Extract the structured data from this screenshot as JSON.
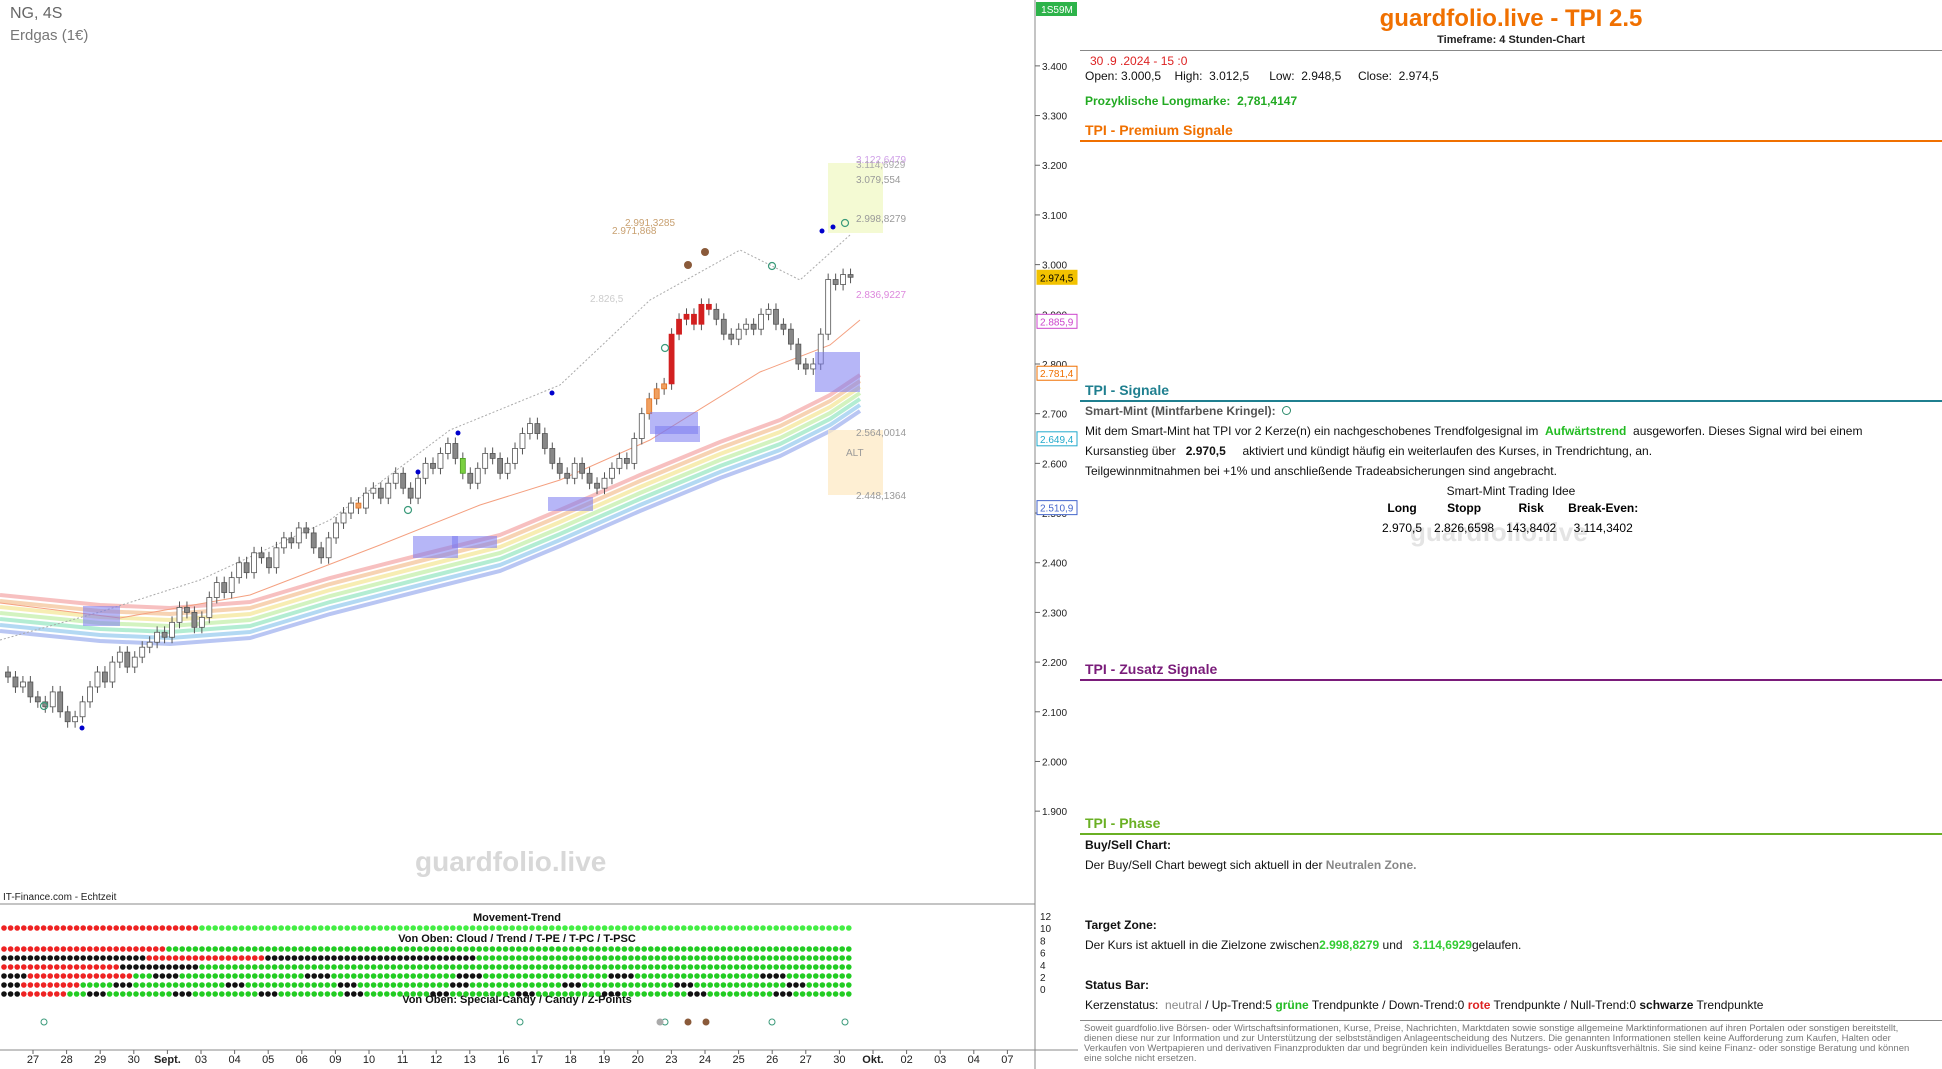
{
  "chart_header": {
    "symbol": "NG, 4S",
    "name": "Erdgas (1€)",
    "time_remaining": "1S59M",
    "source": "IT-Finance.com - Echtzeit",
    "watermark": "guardfolio.live"
  },
  "colors": {
    "up": "#ffffff",
    "down": "#d22020",
    "accent": "#f07000",
    "teal": "#1f7f8f",
    "purple": "#7a1c7a",
    "green": "#6ab024"
  },
  "chart_data": {
    "type": "candlestick",
    "ylim": [
      1.85,
      3.44
    ],
    "y_ticks": [
      "3.400",
      "3.300",
      "3.200",
      "3.100",
      "3.000",
      "2.900",
      "2.800",
      "2.700",
      "2.600",
      "2.500",
      "2.400",
      "2.300",
      "2.200",
      "2.100",
      "2.000",
      "1.900"
    ],
    "x_ticks": [
      "27",
      "28",
      "29",
      "30",
      "Sept.",
      "03",
      "04",
      "05",
      "06",
      "09",
      "10",
      "11",
      "12",
      "13",
      "16",
      "17",
      "18",
      "19",
      "20",
      "23",
      "24",
      "25",
      "26",
      "27",
      "30",
      "Okt.",
      "02",
      "03",
      "04",
      "07"
    ],
    "price_flags": [
      {
        "label": "2.974,5",
        "value": 2.9745,
        "color": "#f2c200"
      },
      {
        "label": "2.885,9",
        "value": 2.8859,
        "color": "#cc44cc"
      },
      {
        "label": "2.781,4",
        "value": 2.7814,
        "color": "#f07000"
      },
      {
        "label": "2.649,4",
        "value": 2.6494,
        "color": "#22aacc"
      },
      {
        "label": "2.510,9",
        "value": 2.5109,
        "color": "#4466cc"
      }
    ],
    "annotations": [
      {
        "text": "3.122,6479",
        "value": 3.1226,
        "color": "#d0a0e8"
      },
      {
        "text": "3.114,6929",
        "value": 3.1147,
        "color": "#aaaaaa"
      },
      {
        "text": "3.079,554",
        "value": 3.0796,
        "color": "#999999"
      },
      {
        "text": "2.998,8279",
        "value": 2.9988,
        "color": "#999999"
      },
      {
        "text": "2.991,3285",
        "value": 2.9913,
        "color": "#c8a070"
      },
      {
        "text": "2.971,868",
        "value": 2.9719,
        "color": "#c8a070"
      },
      {
        "text": "2.836,9227",
        "value": 2.8369,
        "color": "#dd88dd"
      },
      {
        "text": "2.826,5",
        "value": 2.8265,
        "color": "#cccccc"
      },
      {
        "text": "2.564,0014",
        "value": 2.564,
        "color": "#999999"
      },
      {
        "text": "2.448,1364",
        "value": 2.4481,
        "color": "#999999"
      },
      {
        "text": "ALT",
        "value": 2.52,
        "color": "#999999"
      }
    ],
    "indicator": {
      "title": "Movement-Trend",
      "sub1": "Von Oben: Cloud / Trend / T-PE / T-PC / T-PSC",
      "sub2": "Von Oben: Special-Candy / Candy / Z-Points",
      "scale": [
        "12",
        "10",
        "8",
        "6",
        "4",
        "2",
        "0"
      ]
    }
  },
  "panel": {
    "title": "guardfolio.live - TPI 2.5",
    "timeframe": "Timeframe: 4 Stunden-Chart",
    "datetime": "30 .9 .2024  - 15 :0",
    "ohlc": {
      "open_l": "Open:",
      "open": "3.000,5",
      "high_l": "High:",
      "high": "3.012,5",
      "low_l": "Low:",
      "low": "2.948,5",
      "close_l": "Close:",
      "close": "2.974,5"
    },
    "longmarke_label": "Prozyklische Longmarke:",
    "longmarke": "2,781,4147",
    "sec_premium": "TPI - Premium Signale",
    "sec_signale": "TPI - Signale",
    "smartmint_head": "Smart-Mint (Mintfarbene Kringel):",
    "sm_line1a": "Mit dem Smart-Mint hat TPI vor 2  Kerze(n) ein nachgeschobenes Trendfolgesignal im",
    "sm_line1b": "Aufwärtstrend",
    "sm_line1c": "ausgeworfen. Dieses Signal wird bei einem",
    "sm_line2a": "Kursanstieg über",
    "sm_line2b": "2.970,5",
    "sm_line2c": "aktiviert und kündigt häufig ein weiterlaufen des Kurses, in Trendrichtung, an.",
    "sm_line3": "Teilgewinnmitnahmen bei +1% und anschließende Tradeabsicherungen sind angebracht.",
    "idea_title": "Smart-Mint Trading Idee",
    "idea_h": [
      "Long",
      "Stopp",
      "Risk",
      "Break-Even:"
    ],
    "idea_v": [
      "2.970,5",
      "2.826,6598",
      "143,8402",
      "3.114,3402"
    ],
    "sec_zusatz": "TPI - Zusatz Signale",
    "sec_phase": "TPI - Phase",
    "bs_head": "Buy/Sell Chart:",
    "bs_text_a": "Der Buy/Sell Chart bewegt sich aktuell in der",
    "bs_text_b": "Neutralen Zone.",
    "tz_head": "Target Zone:",
    "tz_a": "Der Kurs ist aktuell in die Zielzone zwischen",
    "tz_b": "2.998,8279",
    "tz_c": "und",
    "tz_d": "3.114,6929",
    "tz_e": "gelaufen.",
    "sb_head": "Status Bar:",
    "sb_a": "Kerzenstatus:",
    "sb_b": "neutral",
    "sb_c": "/ Up-Trend:5",
    "sb_d": "grüne",
    "sb_e": "Trendpunkte  / Down-Trend:0",
    "sb_f": "rote",
    "sb_g": "Trendpunkte / Null-Trend:0",
    "sb_h": "schwarze",
    "sb_i": "Trendpunkte",
    "disclaimer": "Soweit guardfolio.live Börsen- oder Wirtschaftsinformationen, Kurse, Preise, Nachrichten, Marktdaten sowie sonstige allgemeine Marktinformationen auf ihren Portalen oder sonstigen bereitstellt, dienen diese nur zur Information und zur Unterstützung der selbstständigen Anlageentscheidung des Nutzers. Die genannten Informationen stellen keine Aufforderung zum Kaufen, Halten oder Verkaufen von Wertpapieren und derivativen Finanzprodukten dar und begründen kein individuelles Beratungs- oder Auskunftsverhältnis. Sie sind keine Finanz- oder sonstige Beratung und können eine solche nicht ersetzen."
  }
}
